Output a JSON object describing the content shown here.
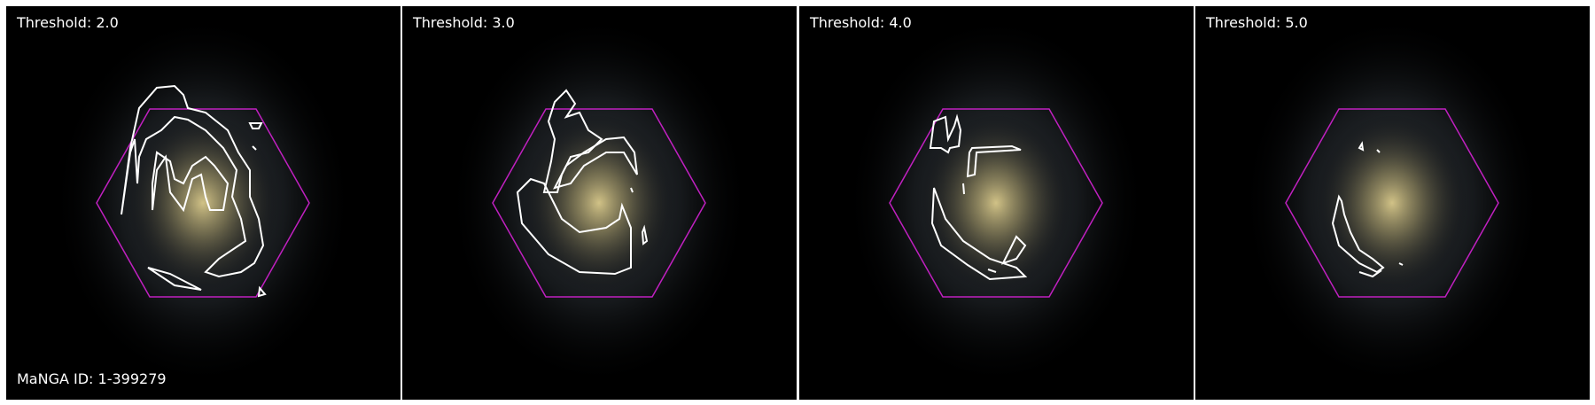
{
  "panels": [
    {
      "label": "Threshold: 2.0"
    },
    {
      "label": "Threshold: 3.0"
    },
    {
      "label": "Threshold: 4.0"
    },
    {
      "label": "Threshold: 5.0"
    }
  ],
  "manga_id": "MaNGA ID: 1-399279",
  "colors": {
    "background": "#000000",
    "hexagon": "#c020c0",
    "contour": "#ffffff",
    "galaxy_core": "#bfb270",
    "galaxy_halo": "#6d7682"
  }
}
